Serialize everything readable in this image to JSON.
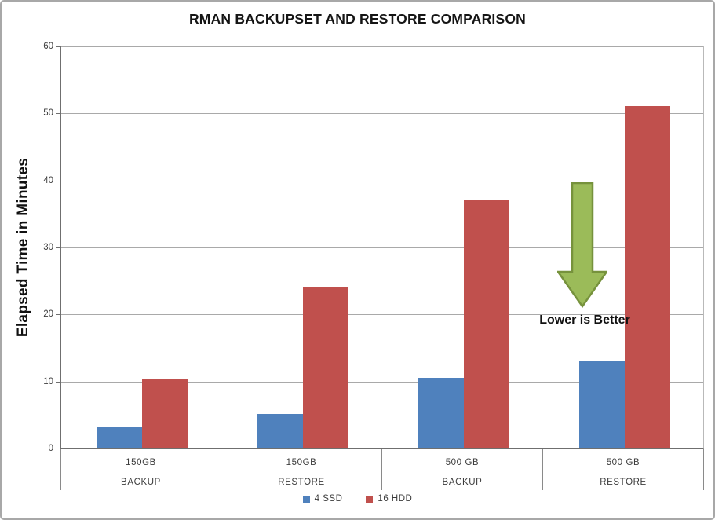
{
  "title": "RMAN BACKUPSET AND RESTORE COMPARISON",
  "y_axis": {
    "label": "Elapsed Time in Minutes",
    "ticks": [
      0,
      10,
      20,
      30,
      40,
      50,
      60
    ]
  },
  "x_axis": {
    "categories": [
      {
        "line1": "150GB",
        "line2": "BACKUP"
      },
      {
        "line1": "150GB",
        "line2": "RESTORE"
      },
      {
        "line1": "500 GB",
        "line2": "BACKUP"
      },
      {
        "line1": "500 GB",
        "line2": "RESTORE"
      }
    ]
  },
  "legend": {
    "items": [
      {
        "label": "4 SSD",
        "color": "#4F81BD"
      },
      {
        "label": "16 HDD",
        "color": "#C0504D"
      }
    ]
  },
  "annotation": {
    "text": "Lower is Better",
    "arrow_fill": "#9BBB59",
    "arrow_stroke": "#76923C"
  },
  "colors": {
    "ssd_blue": "#4F81BD",
    "hdd_red": "#C0504D",
    "gridline": "#a9a9a9",
    "axis": "#6f6f6f"
  },
  "chart_data": {
    "type": "bar",
    "title": "RMAN BACKUPSET AND RESTORE COMPARISON",
    "categories": [
      "150GB BACKUP",
      "150GB RESTORE",
      "500 GB BACKUP",
      "500 GB RESTORE"
    ],
    "series": [
      {
        "name": "4 SSD",
        "color": "#4F81BD",
        "values": [
          3,
          5,
          10.4,
          13
        ]
      },
      {
        "name": "16 HDD",
        "color": "#C0504D",
        "values": [
          10.2,
          24,
          37,
          51
        ]
      }
    ],
    "xlabel": "",
    "ylabel": "Elapsed Time in Minutes",
    "ylim": [
      0,
      60
    ],
    "ytick_step": 10,
    "grid": true,
    "legend_position": "bottom",
    "annotation": "Lower is Better"
  }
}
